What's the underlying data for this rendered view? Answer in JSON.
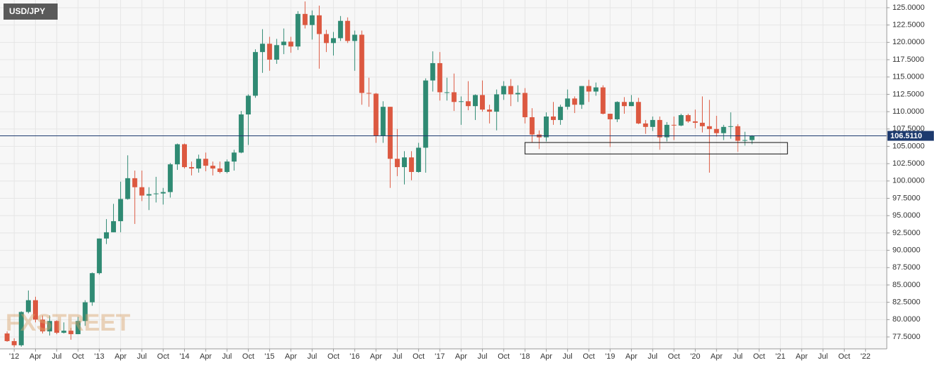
{
  "chart_data": {
    "type": "candlestick",
    "title": "USD/JPY",
    "watermark": "FXSTREET",
    "up_color": "#2f8a73",
    "down_color": "#dc5840",
    "grid": true,
    "x": [
      "2011-12",
      "2012-01",
      "2012-02",
      "2012-03",
      "2012-04",
      "2012-05",
      "2012-06",
      "2012-07",
      "2012-08",
      "2012-09",
      "2012-10",
      "2012-11",
      "2012-12",
      "2013-01",
      "2013-02",
      "2013-03",
      "2013-04",
      "2013-05",
      "2013-06",
      "2013-07",
      "2013-08",
      "2013-09",
      "2013-10",
      "2013-11",
      "2013-12",
      "2014-01",
      "2014-02",
      "2014-03",
      "2014-04",
      "2014-05",
      "2014-06",
      "2014-07",
      "2014-08",
      "2014-09",
      "2014-10",
      "2014-11",
      "2014-12",
      "2015-01",
      "2015-02",
      "2015-03",
      "2015-04",
      "2015-05",
      "2015-06",
      "2015-07",
      "2015-08",
      "2015-09",
      "2015-10",
      "2015-11",
      "2015-12",
      "2016-01",
      "2016-02",
      "2016-03",
      "2016-04",
      "2016-05",
      "2016-06",
      "2016-07",
      "2016-08",
      "2016-09",
      "2016-10",
      "2016-11",
      "2016-12",
      "2017-01",
      "2017-02",
      "2017-03",
      "2017-04",
      "2017-05",
      "2017-06",
      "2017-07",
      "2017-08",
      "2017-09",
      "2017-10",
      "2017-11",
      "2017-12",
      "2018-01",
      "2018-02",
      "2018-03",
      "2018-04",
      "2018-05",
      "2018-06",
      "2018-07",
      "2018-08",
      "2018-09",
      "2018-10",
      "2018-11",
      "2018-12",
      "2019-01",
      "2019-02",
      "2019-03",
      "2019-04",
      "2019-05",
      "2019-06",
      "2019-07",
      "2019-08",
      "2019-09",
      "2019-10",
      "2019-11",
      "2019-12",
      "2020-01",
      "2020-02",
      "2020-03",
      "2020-04",
      "2020-05",
      "2020-06",
      "2020-07",
      "2020-08",
      "2020-09"
    ],
    "open": [
      78.0,
      76.9,
      76.3,
      81.1,
      82.8,
      80.0,
      78.3,
      79.8,
      78.1,
      78.4,
      77.9,
      79.8,
      82.5,
      86.7,
      91.7,
      92.6,
      94.2,
      97.4,
      100.4,
      99.1,
      97.9,
      98.1,
      98.2,
      98.4,
      102.4,
      105.3,
      102.0,
      101.8,
      103.2,
      102.2,
      101.8,
      101.3,
      102.8,
      104.1,
      109.6,
      112.3,
      118.6,
      119.8,
      117.5,
      119.6,
      120.1,
      119.4,
      124.1,
      122.5,
      123.9,
      121.2,
      119.9,
      120.6,
      123.1,
      120.2,
      121.1,
      112.7,
      112.6,
      106.5,
      110.7,
      103.2,
      102.0,
      103.4,
      101.3,
      104.8,
      114.5,
      117.0,
      112.8,
      112.8,
      111.4,
      111.5,
      110.8,
      112.4,
      110.3,
      110.0,
      112.5,
      113.7,
      112.5,
      112.7,
      109.2,
      106.7,
      106.3,
      109.3,
      108.8,
      110.7,
      111.9,
      111.0,
      113.7,
      112.9,
      113.5,
      109.7,
      108.9,
      111.4,
      110.8,
      111.4,
      108.3,
      107.8,
      108.8,
      106.3,
      108.1,
      108.0,
      109.5,
      108.6,
      108.4,
      107.9,
      107.5,
      106.9,
      107.8,
      107.9,
      105.8,
      105.9
    ],
    "high": [
      78.3,
      77.3,
      81.2,
      84.2,
      83.3,
      80.6,
      80.6,
      79.9,
      79.6,
      78.8,
      80.4,
      82.8,
      86.8,
      91.7,
      94.5,
      96.7,
      99.9,
      103.7,
      101.5,
      101.5,
      99.1,
      100.6,
      99.0,
      102.6,
      105.4,
      105.4,
      102.8,
      103.8,
      104.1,
      102.8,
      102.8,
      103.1,
      104.5,
      110.1,
      112.5,
      119.0,
      121.9,
      120.8,
      120.5,
      122.0,
      120.8,
      124.5,
      125.9,
      124.6,
      125.3,
      121.8,
      121.5,
      123.8,
      123.6,
      121.7,
      121.7,
      114.9,
      112.7,
      111.5,
      110.7,
      107.5,
      104.3,
      104.3,
      105.5,
      114.8,
      118.7,
      118.6,
      114.9,
      115.5,
      112.2,
      114.4,
      112.5,
      114.5,
      111.0,
      113.2,
      114.4,
      114.7,
      113.8,
      113.4,
      110.5,
      107.3,
      109.9,
      111.4,
      111.0,
      113.2,
      112.2,
      113.7,
      114.6,
      114.2,
      113.8,
      109.7,
      111.5,
      112.1,
      112.4,
      112.0,
      108.8,
      109.3,
      109.3,
      108.5,
      109.3,
      109.7,
      109.7,
      110.3,
      112.2,
      111.7,
      109.4,
      108.1,
      109.9,
      108.2,
      107.1,
      106.6
    ],
    "low": [
      76.8,
      76.0,
      76.1,
      80.9,
      79.6,
      78.0,
      77.7,
      77.9,
      78.0,
      77.1,
      77.9,
      79.1,
      82.0,
      86.5,
      90.9,
      92.6,
      92.6,
      97.3,
      93.8,
      97.1,
      95.8,
      96.9,
      96.6,
      97.6,
      101.6,
      101.8,
      100.8,
      101.2,
      101.4,
      100.8,
      101.1,
      101.1,
      101.5,
      104.0,
      105.2,
      112.0,
      115.6,
      115.9,
      116.9,
      118.3,
      118.5,
      118.9,
      122.0,
      120.4,
      116.2,
      118.6,
      118.1,
      120.2,
      119.9,
      115.9,
      111.0,
      110.7,
      105.5,
      105.5,
      99.0,
      100.7,
      99.5,
      100.1,
      101.2,
      101.2,
      112.9,
      111.6,
      111.6,
      110.1,
      108.1,
      110.2,
      108.8,
      110.0,
      108.3,
      107.3,
      111.7,
      110.8,
      111.4,
      108.3,
      105.6,
      104.6,
      105.7,
      108.1,
      108.1,
      110.3,
      109.8,
      110.4,
      111.4,
      112.3,
      109.6,
      104.9,
      108.5,
      109.7,
      110.8,
      108.2,
      106.8,
      107.2,
      104.5,
      105.7,
      105.9,
      107.9,
      108.4,
      107.6,
      107.0,
      101.2,
      106.4,
      105.9,
      106.1,
      104.2,
      105.1,
      105.3
    ],
    "close": [
      76.9,
      76.3,
      81.1,
      82.8,
      80.0,
      78.3,
      79.8,
      78.1,
      78.4,
      77.9,
      79.8,
      82.5,
      86.7,
      91.7,
      92.6,
      94.2,
      97.4,
      100.4,
      99.1,
      97.9,
      98.1,
      98.2,
      98.4,
      102.4,
      105.3,
      102.0,
      101.8,
      103.2,
      102.2,
      101.8,
      101.3,
      102.8,
      104.1,
      109.6,
      112.3,
      118.6,
      119.8,
      117.5,
      119.6,
      120.1,
      119.4,
      124.1,
      122.5,
      123.9,
      121.2,
      119.9,
      120.6,
      123.1,
      120.2,
      121.1,
      112.7,
      112.6,
      106.5,
      110.7,
      103.2,
      102.0,
      103.4,
      101.3,
      104.8,
      114.5,
      117.0,
      112.8,
      112.8,
      111.4,
      111.5,
      110.8,
      112.4,
      110.3,
      110.0,
      112.5,
      113.7,
      112.5,
      112.7,
      109.2,
      106.7,
      106.3,
      109.3,
      108.8,
      110.7,
      111.9,
      111.0,
      113.7,
      112.9,
      113.5,
      109.7,
      108.9,
      111.4,
      110.8,
      111.4,
      108.3,
      107.8,
      108.8,
      106.3,
      108.1,
      108.0,
      109.5,
      108.6,
      108.4,
      107.9,
      107.5,
      106.9,
      107.8,
      107.9,
      105.8,
      105.9,
      106.5
    ],
    "last_price": {
      "value": 106.511,
      "label": "106.5110"
    },
    "last_price_color": "#1d3a6e",
    "box": {
      "x": [
        "2018-01",
        "2021-02"
      ],
      "y": [
        103.9,
        105.55
      ]
    },
    "xlim": [
      "2011-11",
      "2022-04"
    ],
    "ylim": [
      75.78,
      126.11
    ],
    "yticks": [
      {
        "value": 77.5,
        "label": "77.5000"
      },
      {
        "value": 80,
        "label": "80.0000"
      },
      {
        "value": 82.5,
        "label": "82.5000"
      },
      {
        "value": 85,
        "label": "85.0000"
      },
      {
        "value": 87.5,
        "label": "87.5000"
      },
      {
        "value": 90,
        "label": "90.0000"
      },
      {
        "value": 92.5,
        "label": "92.5000"
      },
      {
        "value": 95,
        "label": "95.0000"
      },
      {
        "value": 97.5,
        "label": "97.5000"
      },
      {
        "value": 100,
        "label": "100.0000"
      },
      {
        "value": 102.5,
        "label": "102.5000"
      },
      {
        "value": 105,
        "label": "105.0000"
      },
      {
        "value": 107.5,
        "label": "107.5000"
      },
      {
        "value": 110,
        "label": "110.0000"
      },
      {
        "value": 112.5,
        "label": "112.5000"
      },
      {
        "value": 115,
        "label": "115.0000"
      },
      {
        "value": 117.5,
        "label": "117.5000"
      },
      {
        "value": 120,
        "label": "120.0000"
      },
      {
        "value": 122.5,
        "label": "122.5000"
      },
      {
        "value": 125,
        "label": "125.0000"
      }
    ],
    "xticks": [
      {
        "value": "2012-01",
        "label": "'12"
      },
      {
        "value": "2012-04",
        "label": "Apr"
      },
      {
        "value": "2012-07",
        "label": "Jul"
      },
      {
        "value": "2012-10",
        "label": "Oct"
      },
      {
        "value": "2013-01",
        "label": "'13"
      },
      {
        "value": "2013-04",
        "label": "Apr"
      },
      {
        "value": "2013-07",
        "label": "Jul"
      },
      {
        "value": "2013-10",
        "label": "Oct"
      },
      {
        "value": "2014-01",
        "label": "'14"
      },
      {
        "value": "2014-04",
        "label": "Apr"
      },
      {
        "value": "2014-07",
        "label": "Jul"
      },
      {
        "value": "2014-10",
        "label": "Oct"
      },
      {
        "value": "2015-01",
        "label": "'15"
      },
      {
        "value": "2015-04",
        "label": "Apr"
      },
      {
        "value": "2015-07",
        "label": "Jul"
      },
      {
        "value": "2015-10",
        "label": "Oct"
      },
      {
        "value": "2016-01",
        "label": "'16"
      },
      {
        "value": "2016-04",
        "label": "Apr"
      },
      {
        "value": "2016-07",
        "label": "Jul"
      },
      {
        "value": "2016-10",
        "label": "Oct"
      },
      {
        "value": "2017-01",
        "label": "'17"
      },
      {
        "value": "2017-04",
        "label": "Apr"
      },
      {
        "value": "2017-07",
        "label": "Jul"
      },
      {
        "value": "2017-10",
        "label": "Oct"
      },
      {
        "value": "2018-01",
        "label": "'18"
      },
      {
        "value": "2018-04",
        "label": "Apr"
      },
      {
        "value": "2018-07",
        "label": "Jul"
      },
      {
        "value": "2018-10",
        "label": "Oct"
      },
      {
        "value": "2019-01",
        "label": "'19"
      },
      {
        "value": "2019-04",
        "label": "Apr"
      },
      {
        "value": "2019-07",
        "label": "Jul"
      },
      {
        "value": "2019-10",
        "label": "Oct"
      },
      {
        "value": "2020-01",
        "label": "'20"
      },
      {
        "value": "2020-04",
        "label": "Apr"
      },
      {
        "value": "2020-07",
        "label": "Jul"
      },
      {
        "value": "2020-10",
        "label": "Oct"
      },
      {
        "value": "2021-01",
        "label": "'21"
      },
      {
        "value": "2021-04",
        "label": "Apr"
      },
      {
        "value": "2021-07",
        "label": "Jul"
      },
      {
        "value": "2021-10",
        "label": "Oct"
      },
      {
        "value": "2022-01",
        "label": "'22"
      }
    ]
  }
}
